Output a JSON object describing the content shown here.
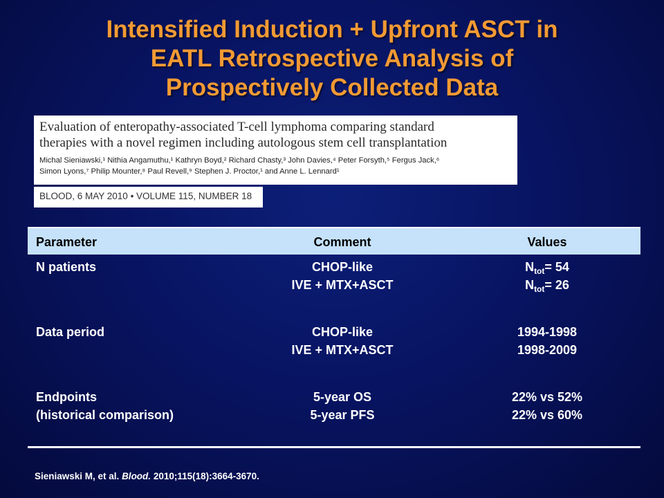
{
  "title": {
    "line1": "Intensified Induction + Upfront ASCT in",
    "line2": "EATL Retrospective Analysis of",
    "line3": "Prospectively Collected Data"
  },
  "article": {
    "title_line1": "Evaluation of enteropathy-associated T-cell lymphoma comparing standard",
    "title_line2": "therapies with a novel regimen including autologous stem cell transplantation",
    "authors_line1": "Michal Sieniawski,¹ Nithia Angamuthu,¹ Kathryn Boyd,² Richard Chasty,³ John Davies,⁴ Peter Forsyth,⁵ Fergus Jack,⁶",
    "authors_line2": "Simon Lyons,⁷ Philip Mounter,⁸ Paul Revell,⁹ Stephen J. Proctor,¹ and Anne L. Lennard¹",
    "journal": "BLOOD, 6 MAY 2010 • VOLUME 115, NUMBER 18"
  },
  "table": {
    "headers": [
      "Parameter",
      "Comment",
      "Values"
    ],
    "rows": [
      {
        "param": [
          "N patients"
        ],
        "comment": [
          "CHOP-like",
          "IVE + MTX+ASCT"
        ],
        "values": [
          {
            "base": "N",
            "sub": "tot",
            "rest": "= 54"
          },
          {
            "base": "N",
            "sub": "tot",
            "rest": "= 26"
          }
        ]
      },
      {
        "param": [
          "Data period"
        ],
        "comment": [
          "CHOP-like",
          "IVE + MTX+ASCT"
        ],
        "values": [
          {
            "text": "1994-1998"
          },
          {
            "text": "1998-2009"
          }
        ]
      },
      {
        "param": [
          "Endpoints",
          "(historical comparison)"
        ],
        "comment": [
          "5-year OS",
          "5-year PFS"
        ],
        "values": [
          {
            "text": "22% vs 52%"
          },
          {
            "text": "22% vs 60%"
          }
        ]
      }
    ]
  },
  "footnote": {
    "pre": "Sieniawski M, et al. ",
    "journal": "Blood.",
    "post": " 2010;115(18):3664-3670."
  }
}
